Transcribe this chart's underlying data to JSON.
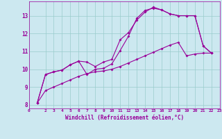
{
  "bg_color": "#cce8f0",
  "line_color": "#990099",
  "grid_color": "#99cccc",
  "xlabel": "Windchill (Refroidissement éolien,°C)",
  "xlim": [
    0,
    23
  ],
  "ylim": [
    7.8,
    13.8
  ],
  "yticks": [
    8,
    9,
    10,
    11,
    12,
    13
  ],
  "xticks": [
    0,
    2,
    3,
    4,
    5,
    6,
    7,
    8,
    9,
    10,
    11,
    12,
    13,
    14,
    15,
    16,
    17,
    18,
    19,
    20,
    21,
    22,
    23
  ],
  "line1_x": [
    1,
    2,
    3,
    4,
    5,
    6,
    7,
    8,
    9,
    10,
    11,
    12,
    13,
    14,
    15,
    16,
    17,
    18,
    19,
    20,
    21,
    22
  ],
  "line1_y": [
    8.1,
    9.7,
    9.85,
    9.95,
    10.25,
    10.45,
    9.7,
    10.0,
    10.05,
    10.3,
    11.05,
    11.85,
    12.85,
    13.3,
    13.42,
    13.32,
    13.1,
    13.0,
    13.0,
    13.0,
    11.3,
    10.9
  ],
  "line2_x": [
    1,
    2,
    3,
    4,
    5,
    6,
    7,
    8,
    9,
    10,
    11,
    12,
    13,
    14,
    15,
    16,
    17,
    18,
    19,
    20,
    21,
    22
  ],
  "line2_y": [
    8.1,
    9.7,
    9.85,
    9.95,
    10.25,
    10.45,
    10.4,
    10.15,
    10.4,
    10.55,
    11.65,
    12.05,
    12.75,
    13.2,
    13.48,
    13.32,
    13.1,
    13.0,
    13.0,
    13.0,
    11.3,
    10.9
  ],
  "line3_x": [
    1,
    2,
    3,
    4,
    5,
    6,
    7,
    8,
    9,
    10,
    11,
    12,
    13,
    14,
    15,
    16,
    17,
    18,
    19,
    20,
    21,
    22
  ],
  "line3_y": [
    8.1,
    8.8,
    9.0,
    9.2,
    9.4,
    9.6,
    9.75,
    9.85,
    9.9,
    10.0,
    10.15,
    10.35,
    10.55,
    10.75,
    10.95,
    11.15,
    11.35,
    11.5,
    10.75,
    10.85,
    10.9,
    10.9
  ]
}
